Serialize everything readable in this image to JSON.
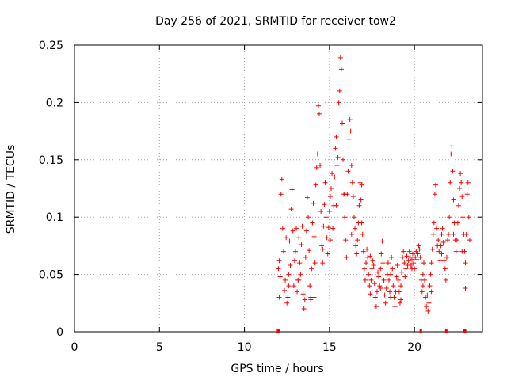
{
  "chart_data": {
    "type": "scatter",
    "title": "Day 256 of 2021, SRMTID for receiver tow2",
    "xlabel": "GPS time / hours",
    "ylabel": "SRMTID / TECUs",
    "xlim": [
      0,
      24
    ],
    "ylim": [
      0,
      0.25
    ],
    "xticks": [
      0,
      5,
      10,
      15,
      20
    ],
    "xtick_labels": [
      "0",
      "5",
      "10",
      "15",
      "20"
    ],
    "yticks": [
      0,
      0.05,
      0.1,
      0.15,
      0.2,
      0.25
    ],
    "ytick_labels": [
      "0",
      "0.05",
      "0.1",
      "0.15",
      "0.2",
      "0.25"
    ],
    "grid": true,
    "marker": "+",
    "color": "#ff0000",
    "series": [
      {
        "name": "SRMTID",
        "points": [
          [
            12.0,
            0.055
          ],
          [
            12.05,
            0.062
          ],
          [
            12.1,
            0.048
          ],
          [
            12.15,
            0.12
          ],
          [
            12.2,
            0.133
          ],
          [
            12.25,
            0.09
          ],
          [
            12.3,
            0.07
          ],
          [
            12.35,
            0.036
          ],
          [
            12.4,
            0.045
          ],
          [
            12.45,
            0.082
          ],
          [
            12.5,
            0.025
          ],
          [
            12.55,
            0.03
          ],
          [
            12.6,
            0.05
          ],
          [
            12.65,
            0.079
          ],
          [
            12.7,
            0.058
          ],
          [
            12.75,
            0.107
          ],
          [
            12.8,
            0.124
          ],
          [
            12.85,
            0.088
          ],
          [
            12.9,
            0.04
          ],
          [
            12.95,
            0.062
          ],
          [
            13.0,
            0.07
          ],
          [
            13.05,
            0.09
          ],
          [
            13.1,
            0.035
          ],
          [
            13.15,
            0.045
          ],
          [
            13.2,
            0.082
          ],
          [
            13.25,
            0.06
          ],
          [
            13.3,
            0.05
          ],
          [
            13.35,
            0.076
          ],
          [
            13.4,
            0.092
          ],
          [
            13.45,
            0.033
          ],
          [
            13.5,
            0.02
          ],
          [
            13.55,
            0.028
          ],
          [
            13.6,
            0.065
          ],
          [
            13.65,
            0.088
          ],
          [
            13.7,
            0.117
          ],
          [
            13.75,
            0.1
          ],
          [
            13.8,
            0.071
          ],
          [
            13.85,
            0.04
          ],
          [
            13.9,
            0.03
          ],
          [
            13.95,
            0.055
          ],
          [
            14.0,
            0.095
          ],
          [
            14.05,
            0.112
          ],
          [
            14.1,
            0.083
          ],
          [
            14.15,
            0.06
          ],
          [
            14.2,
            0.128
          ],
          [
            14.25,
            0.143
          ],
          [
            14.3,
            0.155
          ],
          [
            14.35,
            0.197
          ],
          [
            14.4,
            0.19
          ],
          [
            14.45,
            0.145
          ],
          [
            14.5,
            0.105
          ],
          [
            14.55,
            0.075
          ],
          [
            14.6,
            0.06
          ],
          [
            14.65,
            0.092
          ],
          [
            14.7,
            0.111
          ],
          [
            14.75,
            0.13
          ],
          [
            14.8,
            0.1
          ],
          [
            14.85,
            0.082
          ],
          [
            14.9,
            0.068
          ],
          [
            14.95,
            0.091
          ],
          [
            15.0,
            0.105
          ],
          [
            15.05,
            0.118
          ],
          [
            15.1,
            0.125
          ],
          [
            15.15,
            0.138
          ],
          [
            15.2,
            0.09
          ],
          [
            15.25,
            0.11
          ],
          [
            15.3,
            0.135
          ],
          [
            15.35,
            0.16
          ],
          [
            15.4,
            0.17
          ],
          [
            15.45,
            0.145
          ],
          [
            15.5,
            0.152
          ],
          [
            15.55,
            0.2
          ],
          [
            15.6,
            0.21
          ],
          [
            15.65,
            0.239
          ],
          [
            15.7,
            0.229
          ],
          [
            15.75,
            0.182
          ],
          [
            15.8,
            0.15
          ],
          [
            15.85,
            0.12
          ],
          [
            15.9,
            0.1
          ],
          [
            15.95,
            0.08
          ],
          [
            16.0,
            0.065
          ],
          [
            16.05,
            0.12
          ],
          [
            16.1,
            0.14
          ],
          [
            16.15,
            0.168
          ],
          [
            16.2,
            0.185
          ],
          [
            16.25,
            0.175
          ],
          [
            16.3,
            0.145
          ],
          [
            16.35,
            0.13
          ],
          [
            16.4,
            0.118
          ],
          [
            16.45,
            0.1
          ],
          [
            16.5,
            0.09
          ],
          [
            16.55,
            0.075
          ],
          [
            16.6,
            0.068
          ],
          [
            16.65,
            0.08
          ],
          [
            16.7,
            0.095
          ],
          [
            16.75,
            0.11
          ],
          [
            16.8,
            0.13
          ],
          [
            16.85,
            0.115
          ],
          [
            16.9,
            0.095
          ],
          [
            16.95,
            0.085
          ],
          [
            17.0,
            0.07
          ],
          [
            17.05,
            0.055
          ],
          [
            17.1,
            0.045
          ],
          [
            17.15,
            0.06
          ],
          [
            17.2,
            0.072
          ],
          [
            17.25,
            0.065
          ],
          [
            17.3,
            0.05
          ],
          [
            17.35,
            0.04
          ],
          [
            17.4,
            0.033
          ],
          [
            17.45,
            0.045
          ],
          [
            17.5,
            0.055
          ],
          [
            17.55,
            0.062
          ],
          [
            17.6,
            0.058
          ],
          [
            17.65,
            0.042
          ],
          [
            17.7,
            0.03
          ],
          [
            17.75,
            0.022
          ],
          [
            17.8,
            0.035
          ],
          [
            17.85,
            0.052
          ],
          [
            17.9,
            0.048
          ],
          [
            17.95,
            0.04
          ],
          [
            18.0,
            0.055
          ],
          [
            18.05,
            0.068
          ],
          [
            18.1,
            0.079
          ],
          [
            18.15,
            0.06
          ],
          [
            18.2,
            0.045
          ],
          [
            18.25,
            0.032
          ],
          [
            18.3,
            0.025
          ],
          [
            18.35,
            0.038
          ],
          [
            18.4,
            0.05
          ],
          [
            18.45,
            0.06
          ],
          [
            18.5,
            0.045
          ],
          [
            18.55,
            0.035
          ],
          [
            18.6,
            0.05
          ],
          [
            18.65,
            0.065
          ],
          [
            18.7,
            0.055
          ],
          [
            18.75,
            0.04
          ],
          [
            18.8,
            0.03
          ],
          [
            18.85,
            0.022
          ],
          [
            18.9,
            0.035
          ],
          [
            18.95,
            0.048
          ],
          [
            19.0,
            0.058
          ],
          [
            19.05,
            0.045
          ],
          [
            19.1,
            0.035
          ],
          [
            19.15,
            0.025
          ],
          [
            19.2,
            0.04
          ],
          [
            19.25,
            0.052
          ],
          [
            19.3,
            0.065
          ],
          [
            19.35,
            0.07
          ],
          [
            19.4,
            0.06
          ],
          [
            19.45,
            0.048
          ],
          [
            19.5,
            0.055
          ],
          [
            19.55,
            0.066
          ],
          [
            19.6,
            0.058
          ],
          [
            19.65,
            0.062
          ],
          [
            19.7,
            0.07
          ],
          [
            19.75,
            0.065
          ],
          [
            19.8,
            0.058
          ],
          [
            19.85,
            0.063
          ],
          [
            19.9,
            0.068
          ],
          [
            19.95,
            0.06
          ],
          [
            20.0,
            0.055
          ],
          [
            20.05,
            0.065
          ],
          [
            20.1,
            0.07
          ],
          [
            20.15,
            0.063
          ],
          [
            20.2,
            0.068
          ],
          [
            20.25,
            0.075
          ],
          [
            20.3,
            0.072
          ],
          [
            20.35,
            0.065
          ],
          [
            20.4,
            0.045
          ],
          [
            20.45,
            0.035
          ],
          [
            20.5,
            0.05
          ],
          [
            20.55,
            0.06
          ],
          [
            20.6,
            0.045
          ],
          [
            20.65,
            0.03
          ],
          [
            20.7,
            0.022
          ],
          [
            20.75,
            0.032
          ],
          [
            20.8,
            0.018
          ],
          [
            20.85,
            0.025
          ],
          [
            20.9,
            0.04
          ],
          [
            20.95,
            0.05
          ],
          [
            21.0,
            0.06
          ],
          [
            21.05,
            0.072
          ],
          [
            21.1,
            0.085
          ],
          [
            21.15,
            0.095
          ],
          [
            21.2,
            0.12
          ],
          [
            21.25,
            0.128
          ],
          [
            21.3,
            0.09
          ],
          [
            21.35,
            0.075
          ],
          [
            21.4,
            0.08
          ],
          [
            21.45,
            0.07
          ],
          [
            21.5,
            0.062
          ],
          [
            21.55,
            0.075
          ],
          [
            21.6,
            0.085
          ],
          [
            21.65,
            0.09
          ],
          [
            21.7,
            0.078
          ],
          [
            21.75,
            0.062
          ],
          [
            21.8,
            0.055
          ],
          [
            21.85,
            0.045
          ],
          [
            21.9,
            0.065
          ],
          [
            21.95,
            0.08
          ],
          [
            22.0,
            0.085
          ],
          [
            22.05,
            0.1
          ],
          [
            22.1,
            0.13
          ],
          [
            22.15,
            0.155
          ],
          [
            22.2,
            0.162
          ],
          [
            22.25,
            0.14
          ],
          [
            22.3,
            0.115
          ],
          [
            22.35,
            0.095
          ],
          [
            22.4,
            0.08
          ],
          [
            22.45,
            0.07
          ],
          [
            22.5,
            0.08
          ],
          [
            22.55,
            0.095
          ],
          [
            22.6,
            0.11
          ],
          [
            22.65,
            0.125
          ],
          [
            22.7,
            0.138
          ],
          [
            22.75,
            0.13
          ],
          [
            22.8,
            0.118
          ],
          [
            22.85,
            0.1
          ],
          [
            22.9,
            0.085
          ],
          [
            22.95,
            0.07
          ],
          [
            23.0,
            0.06
          ],
          [
            23.05,
            0.085
          ],
          [
            23.1,
            0.12
          ],
          [
            23.15,
            0.13
          ],
          [
            23.2,
            0.1
          ],
          [
            23.25,
            0.08
          ],
          [
            23.0,
            0.038
          ],
          [
            12.05,
            0.03
          ],
          [
            12.6,
            0.04
          ],
          [
            13.2,
            0.045
          ],
          [
            13.9,
            0.028
          ],
          [
            14.1,
            0.03
          ],
          [
            14.6,
            0.072
          ],
          [
            15.05,
            0.08
          ],
          [
            15.4,
            0.11
          ],
          [
            15.9,
            0.12
          ],
          [
            16.3,
            0.085
          ],
          [
            16.9,
            0.128
          ],
          [
            17.4,
            0.066
          ],
          [
            18.0,
            0.038
          ],
          [
            18.6,
            0.03
          ],
          [
            19.2,
            0.028
          ],
          [
            19.85,
            0.055
          ],
          [
            20.5,
            0.04
          ],
          [
            21.0,
            0.035
          ],
          [
            21.6,
            0.068
          ],
          [
            22.3,
            0.085
          ],
          [
            22.8,
            0.07
          ]
        ]
      }
    ],
    "zero_value_segments": [
      [
        11.9,
        12.1
      ],
      [
        20.3,
        20.45
      ],
      [
        21.8,
        21.9
      ],
      [
        22.85,
        23.05
      ]
    ]
  }
}
